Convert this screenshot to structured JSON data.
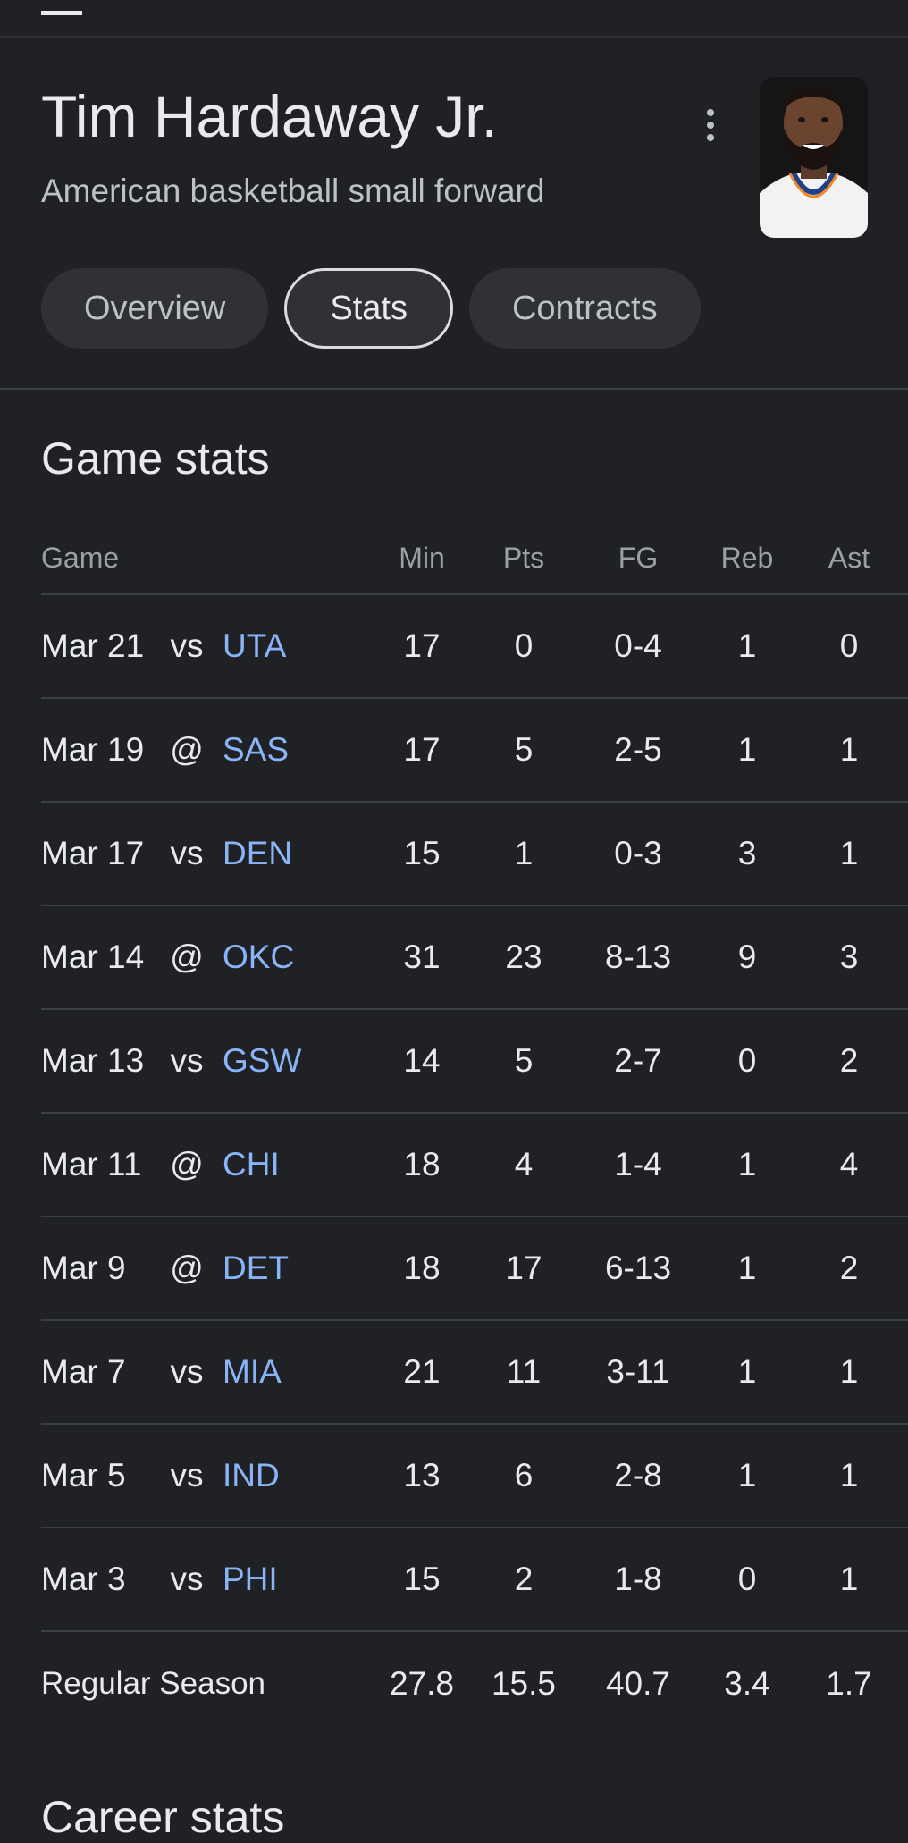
{
  "player": {
    "name": "Tim Hardaway Jr.",
    "description": "American basketball small forward"
  },
  "tabs": [
    {
      "label": "Overview",
      "active": false
    },
    {
      "label": "Stats",
      "active": true
    },
    {
      "label": "Contracts",
      "active": false
    }
  ],
  "game_stats": {
    "title": "Game stats",
    "headers": {
      "game": "Game",
      "min": "Min",
      "pts": "Pts",
      "fg": "FG",
      "reb": "Reb",
      "ast": "Ast"
    },
    "rows": [
      {
        "date": "Mar 21",
        "ha": "vs",
        "team": "UTA",
        "min": "17",
        "pts": "0",
        "fg": "0-4",
        "reb": "1",
        "ast": "0"
      },
      {
        "date": "Mar 19",
        "ha": "@",
        "team": "SAS",
        "min": "17",
        "pts": "5",
        "fg": "2-5",
        "reb": "1",
        "ast": "1"
      },
      {
        "date": "Mar 17",
        "ha": "vs",
        "team": "DEN",
        "min": "15",
        "pts": "1",
        "fg": "0-3",
        "reb": "3",
        "ast": "1"
      },
      {
        "date": "Mar 14",
        "ha": "@",
        "team": "OKC",
        "min": "31",
        "pts": "23",
        "fg": "8-13",
        "reb": "9",
        "ast": "3"
      },
      {
        "date": "Mar 13",
        "ha": "vs",
        "team": "GSW",
        "min": "14",
        "pts": "5",
        "fg": "2-7",
        "reb": "0",
        "ast": "2"
      },
      {
        "date": "Mar 11",
        "ha": "@",
        "team": "CHI",
        "min": "18",
        "pts": "4",
        "fg": "1-4",
        "reb": "1",
        "ast": "4"
      },
      {
        "date": "Mar 9",
        "ha": "@",
        "team": "DET",
        "min": "18",
        "pts": "17",
        "fg": "6-13",
        "reb": "1",
        "ast": "2"
      },
      {
        "date": "Mar 7",
        "ha": "vs",
        "team": "MIA",
        "min": "21",
        "pts": "11",
        "fg": "3-11",
        "reb": "1",
        "ast": "1"
      },
      {
        "date": "Mar 5",
        "ha": "vs",
        "team": "IND",
        "min": "13",
        "pts": "6",
        "fg": "2-8",
        "reb": "1",
        "ast": "1"
      },
      {
        "date": "Mar 3",
        "ha": "vs",
        "team": "PHI",
        "min": "15",
        "pts": "2",
        "fg": "1-8",
        "reb": "0",
        "ast": "1"
      }
    ],
    "season": {
      "label": "Regular Season",
      "min": "27.8",
      "pts": "15.5",
      "fg": "40.7",
      "reb": "3.4",
      "ast": "1.7"
    }
  },
  "career_stats": {
    "title": "Career stats"
  },
  "icons": {
    "more": "more-vert-icon",
    "avatar": "player-photo"
  },
  "colors": {
    "background": "#202124",
    "text": "#e8eaed",
    "muted": "#9aa0a6",
    "link": "#8ab4f8",
    "divider": "#3c4043"
  }
}
